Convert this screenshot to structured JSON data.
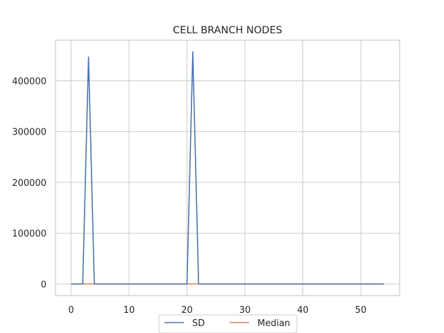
{
  "chart_data": {
    "type": "line",
    "title": "CELL BRANCH NODES",
    "xlabel": "",
    "ylabel": "",
    "xlim": [
      -2.7,
      56.7
    ],
    "ylim": [
      -22850,
      479850
    ],
    "xticks": [
      0,
      10,
      20,
      30,
      40,
      50
    ],
    "yticks": [
      0,
      100000,
      200000,
      300000,
      400000
    ],
    "x": [
      0,
      1,
      2,
      3,
      4,
      5,
      6,
      7,
      8,
      9,
      10,
      11,
      12,
      13,
      14,
      15,
      16,
      17,
      18,
      19,
      20,
      21,
      22,
      23,
      24,
      25,
      26,
      27,
      28,
      29,
      30,
      31,
      32,
      33,
      34,
      35,
      36,
      37,
      38,
      39,
      40,
      41,
      42,
      43,
      44,
      45,
      46,
      47,
      48,
      49,
      50,
      51,
      52,
      53,
      54
    ],
    "series": [
      {
        "name": "SD",
        "color": "#4c72b0",
        "values": [
          0,
          0,
          0,
          447000,
          0,
          0,
          0,
          0,
          0,
          0,
          0,
          0,
          0,
          0,
          0,
          0,
          0,
          0,
          0,
          0,
          0,
          457000,
          0,
          0,
          0,
          0,
          0,
          0,
          0,
          0,
          0,
          0,
          0,
          0,
          0,
          0,
          0,
          0,
          0,
          0,
          0,
          0,
          0,
          0,
          0,
          0,
          0,
          0,
          0,
          0,
          0,
          0,
          0,
          0,
          0
        ]
      },
      {
        "name": "Median",
        "color": "#dd8452",
        "values": [
          0,
          0,
          0,
          0,
          0,
          0,
          0,
          0,
          0,
          0,
          0,
          0,
          0,
          0,
          0,
          0,
          0,
          0,
          0,
          0,
          0,
          0,
          0,
          0,
          0,
          0,
          0,
          0,
          0,
          0,
          0,
          0,
          0,
          0,
          0,
          0,
          0,
          0,
          0,
          0,
          0,
          0,
          0,
          0,
          0,
          0,
          0,
          0,
          0,
          0,
          0,
          0,
          0,
          0,
          0
        ]
      }
    ],
    "grid": true,
    "legend_position": "bottom-center"
  }
}
